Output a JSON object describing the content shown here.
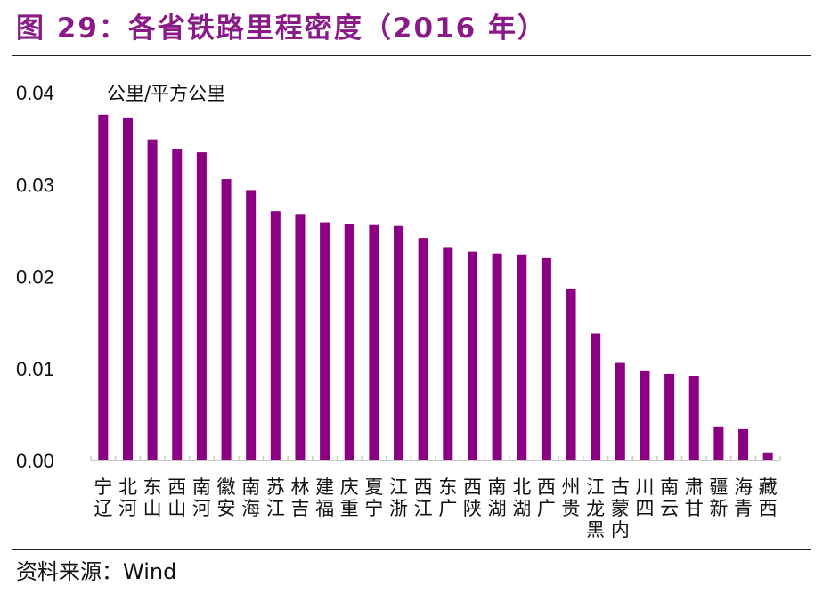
{
  "title": "图 29：各省铁路里程密度（2016 年）",
  "source": "资料来源：Wind",
  "colors": {
    "bar": "#8b0082",
    "title": "#8a1a88",
    "axis": "#c8c8c8"
  },
  "chart_data": {
    "type": "bar",
    "title": "",
    "unit_label": "公里/平方公里",
    "xlabel": "",
    "ylabel": "",
    "ylim": [
      0,
      0.04
    ],
    "yticks": [
      "0.00",
      "0.01",
      "0.02",
      "0.03",
      "0.04"
    ],
    "grid": false,
    "categories": [
      "辽宁",
      "河北",
      "山东",
      "山西",
      "河南",
      "安徽",
      "海南",
      "江苏",
      "吉林",
      "福建",
      "重庆",
      "宁夏",
      "浙江",
      "江西",
      "广东",
      "陕西",
      "湖南",
      "湖北",
      "广西",
      "贵州",
      "黑龙江",
      "内蒙古",
      "四川",
      "云南",
      "甘肃",
      "新疆",
      "青海",
      "西藏"
    ],
    "values": [
      0.0376,
      0.0373,
      0.0349,
      0.0339,
      0.0335,
      0.0306,
      0.0294,
      0.0271,
      0.0268,
      0.0259,
      0.0257,
      0.0256,
      0.0255,
      0.0242,
      0.0232,
      0.0227,
      0.0225,
      0.0224,
      0.022,
      0.0187,
      0.0138,
      0.0106,
      0.0097,
      0.0094,
      0.0092,
      0.0037,
      0.0034,
      0.0008
    ]
  }
}
